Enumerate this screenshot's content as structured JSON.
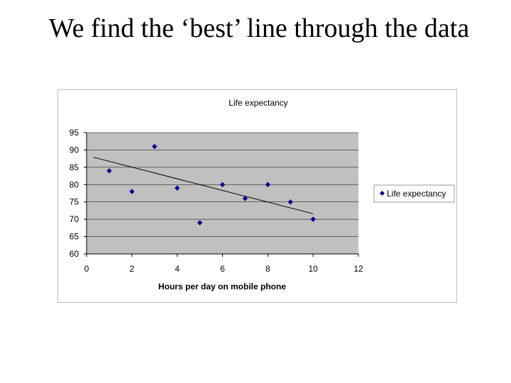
{
  "slide": {
    "title": "We find the ‘best’ line through the data"
  },
  "chart_data": {
    "type": "scatter",
    "title": "Life expectancy",
    "xlabel": "Hours per day on mobile phone",
    "ylabel": "",
    "xlim": [
      0,
      12
    ],
    "ylim": [
      60,
      95
    ],
    "xticks": [
      0,
      2,
      4,
      6,
      8,
      10,
      12
    ],
    "yticks": [
      60,
      65,
      70,
      75,
      80,
      85,
      90,
      95
    ],
    "grid": true,
    "legend_position": "right",
    "colors": {
      "marker": "#000080",
      "plot_bg": "#c0c0c0",
      "trendline": "#000000"
    },
    "series": [
      {
        "name": "Life expectancy",
        "points": [
          {
            "x": 1,
            "y": 84
          },
          {
            "x": 2,
            "y": 78
          },
          {
            "x": 3,
            "y": 91
          },
          {
            "x": 4,
            "y": 79
          },
          {
            "x": 5,
            "y": 69
          },
          {
            "x": 6,
            "y": 80
          },
          {
            "x": 7,
            "y": 76
          },
          {
            "x": 8,
            "y": 80
          },
          {
            "x": 9,
            "y": 75
          },
          {
            "x": 10,
            "y": 70
          }
        ]
      }
    ],
    "trendline": {
      "x": [
        0.3,
        10
      ],
      "y": [
        87.9,
        71.6
      ]
    }
  }
}
